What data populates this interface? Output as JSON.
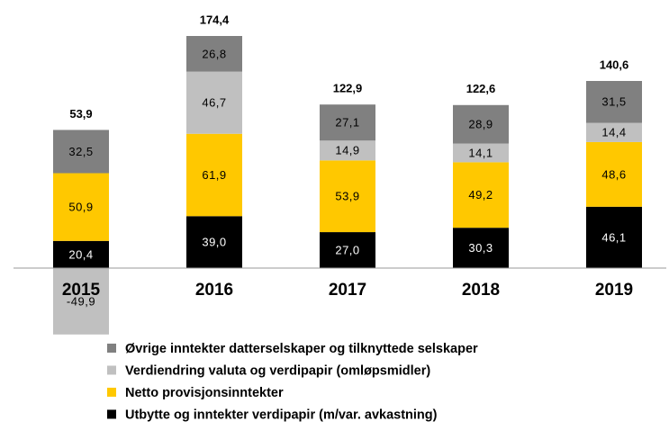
{
  "chart_data": {
    "type": "stacked-bar",
    "categories": [
      "2015",
      "2016",
      "2017",
      "2018",
      "2019"
    ],
    "series": [
      {
        "name": "Utbytte og inntekter verdipapir (m/var. avkastning)",
        "color": "#000000",
        "label_color": "#ffffff",
        "values": [
          20.4,
          39.0,
          27.0,
          30.3,
          46.1
        ],
        "value_labels": [
          "20,4",
          "39,0",
          "27,0",
          "30,3",
          "46,1"
        ]
      },
      {
        "name": "Netto provisjonsinntekter",
        "color": "#ffc800",
        "label_color": "#000000",
        "values": [
          50.9,
          61.9,
          53.9,
          49.2,
          48.6
        ],
        "value_labels": [
          "50,9",
          "61,9",
          "53,9",
          "49,2",
          "48,6"
        ]
      },
      {
        "name": "Verdiendring valuta og verdipapir (omløpsmidler)",
        "color": "#c0c0c0",
        "label_color": "#000000",
        "values": [
          -49.9,
          46.7,
          14.9,
          14.1,
          14.4
        ],
        "value_labels": [
          "-49,9",
          "46,7",
          "14,9",
          "14,1",
          "14,4"
        ]
      },
      {
        "name": "Øvrige inntekter datterselskaper og tilknyttede selskaper",
        "color": "#808080",
        "label_color": "#000000",
        "values": [
          32.5,
          26.8,
          27.1,
          28.9,
          31.5
        ],
        "value_labels": [
          "32,5",
          "26,8",
          "27,1",
          "28,9",
          "31,5"
        ]
      }
    ],
    "totals": [
      53.9,
      174.4,
      122.9,
      122.6,
      140.6
    ],
    "total_labels": [
      "53,9",
      "174,4",
      "122,9",
      "122,6",
      "140,6"
    ]
  }
}
